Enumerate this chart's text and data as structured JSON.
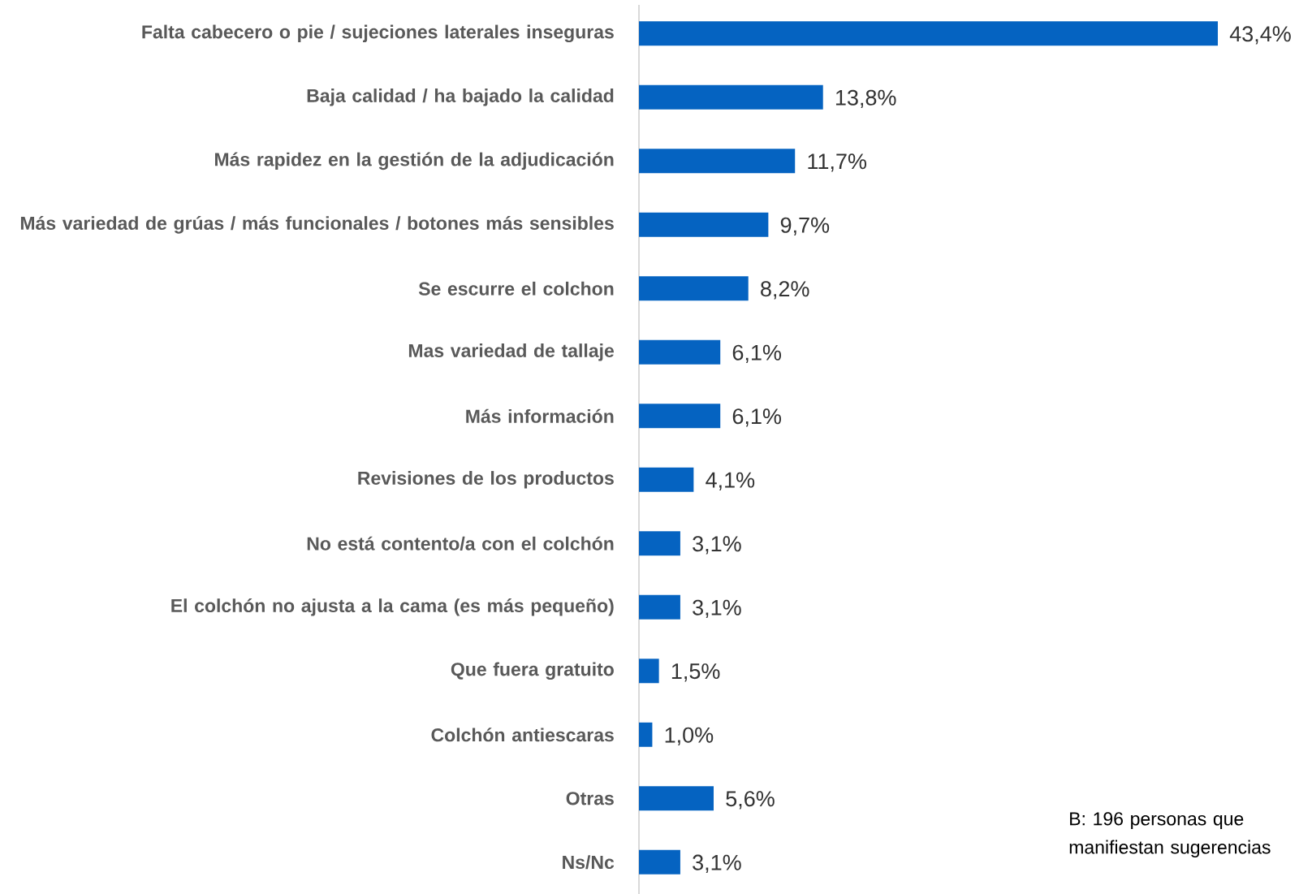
{
  "chart_data": {
    "type": "bar",
    "orientation": "horizontal",
    "categories": [
      "Falta cabecero o pie / sujeciones laterales inseguras",
      "Baja calidad / ha bajado la calidad",
      "Más rapidez en la gestión de la adjudicación",
      "Más variedad de grúas / más funcionales / botones más sensibles",
      "Se escurre el colchon",
      "Mas variedad de tallaje",
      "Más información",
      "Revisiones de los productos",
      "No está contento/a con el colchón",
      "El colchón no ajusta a la cama (es más pequeño)",
      "Que fuera gratuito",
      "Colchón antiescaras",
      "Otras",
      "Ns/Nc"
    ],
    "values": [
      43.4,
      13.8,
      11.7,
      9.7,
      8.2,
      6.1,
      6.1,
      4.1,
      3.1,
      3.1,
      1.5,
      1.0,
      5.6,
      3.1
    ],
    "value_labels": [
      "43,4%",
      "13,8%",
      "11,7%",
      "9,7%",
      "8,2%",
      "6,1%",
      "6,1%",
      "4,1%",
      "3,1%",
      "3,1%",
      "1,5%",
      "1,0%",
      "5,6%",
      "3,1%"
    ],
    "color": "#0563c1",
    "annotations": [
      "B: 196 personas que manifiestan sugerencias"
    ]
  }
}
